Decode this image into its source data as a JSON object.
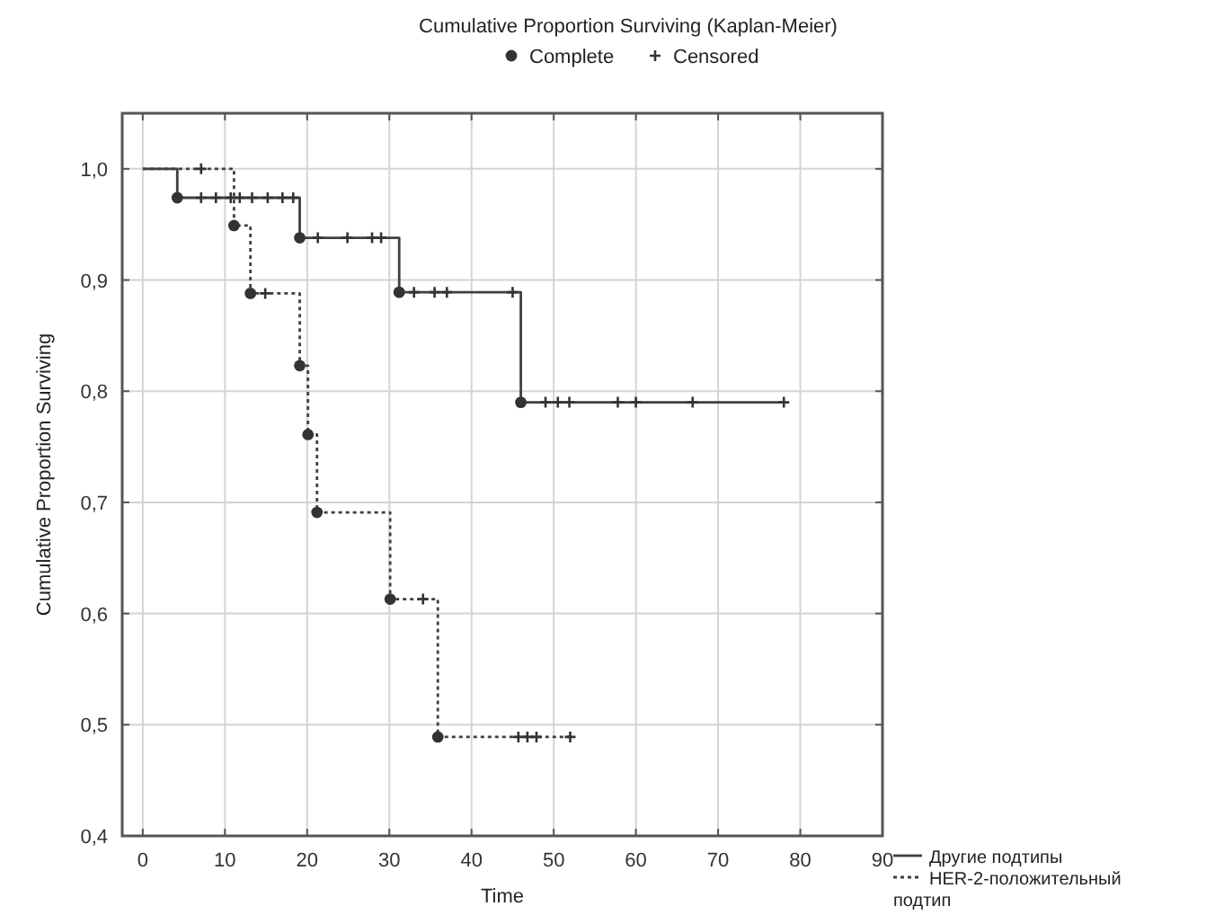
{
  "chart_data": {
    "type": "step",
    "title": "Cumulative Proportion Surviving (Kaplan-Meier)",
    "xlabel": "Time",
    "ylabel": "Cumulative Proportion Surviving",
    "xlim": [
      -2.5,
      90
    ],
    "xticks": [
      0,
      10,
      20,
      30,
      40,
      50,
      60,
      70,
      80,
      90
    ],
    "ylim": [
      0.4,
      1.05
    ],
    "yticks": [
      {
        "value": 0.4,
        "label": "0,4"
      },
      {
        "value": 0.5,
        "label": "0,5"
      },
      {
        "value": 0.6,
        "label": "0,6"
      },
      {
        "value": 0.7,
        "label": "0,7"
      },
      {
        "value": 0.8,
        "label": "0,8"
      },
      {
        "value": 0.9,
        "label": "0,9"
      },
      {
        "value": 1.0,
        "label": "1,0"
      }
    ],
    "grid": true,
    "legend": "bottom right",
    "series": [
      {
        "name": "Другие подтипы",
        "color": "#404040",
        "line_style": "solid",
        "x": [
          0,
          4.2,
          19.1,
          31.2,
          46,
          78
        ],
        "values": [
          1,
          0.974,
          0.938,
          0.889,
          0.79,
          0.79
        ]
      },
      {
        "name": "HER-2-положительный подтип",
        "color": "#404040",
        "line_style": "dotted",
        "x": [
          0,
          11.1,
          13.1,
          19.1,
          20.1,
          21.2,
          30.1,
          35.9,
          52
        ],
        "values": [
          1,
          0.949,
          0.888,
          0.823,
          0.761,
          0.691,
          0.613,
          0.489,
          0.489
        ]
      },
      {
        "name": "Complete",
        "type": "scatter",
        "marker": "circle",
        "color": "#333333",
        "x": [
          4.2,
          19.1,
          31.2,
          46,
          11.1,
          13.1,
          19.1,
          20.1,
          21.2,
          30.1,
          35.9
        ],
        "values": [
          0.974,
          0.938,
          0.889,
          0.79,
          0.949,
          0.888,
          0.823,
          0.761,
          0.691,
          0.613,
          0.489
        ]
      },
      {
        "name": "Censored",
        "type": "scatter",
        "marker": "cross",
        "color": "#333333",
        "x": [
          7.1,
          8.9,
          10.7,
          11.8,
          13.3,
          15.2,
          17,
          18.3,
          21.3,
          24.9,
          27.9,
          29,
          33,
          35.5,
          37,
          45,
          49,
          50.5,
          51.9,
          57.8,
          60,
          66.9,
          78,
          7.1,
          14.9,
          34.1,
          45.7,
          46.8,
          47.9,
          52
        ],
        "values": [
          0.974,
          0.974,
          0.974,
          0.974,
          0.974,
          0.974,
          0.974,
          0.974,
          0.938,
          0.938,
          0.938,
          0.938,
          0.889,
          0.889,
          0.889,
          0.889,
          0.79,
          0.79,
          0.79,
          0.79,
          0.79,
          0.79,
          0.79,
          1,
          0.888,
          0.613,
          0.489,
          0.489,
          0.489,
          0.489
        ]
      }
    ]
  }
}
